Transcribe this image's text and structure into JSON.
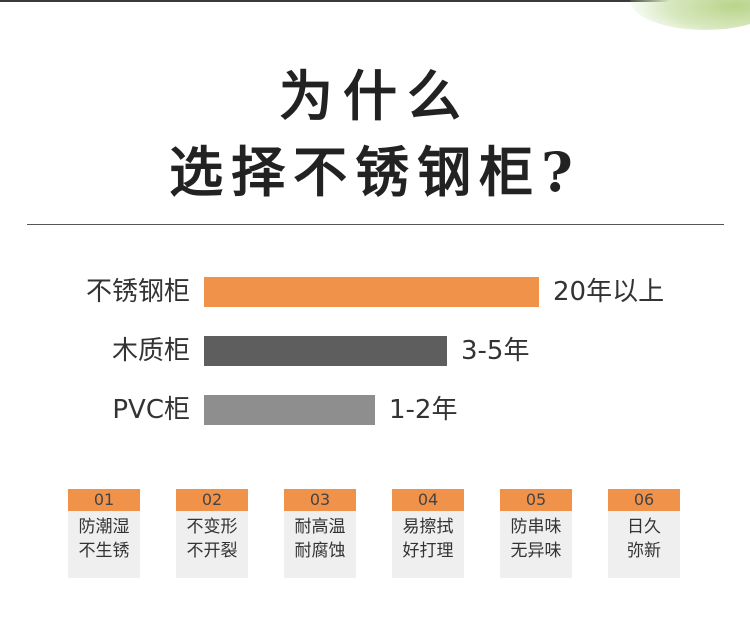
{
  "title": {
    "line1": "为什么",
    "line2": "选择不锈钢柜?"
  },
  "chart_data": {
    "type": "bar",
    "orientation": "horizontal",
    "categories": [
      "不锈钢柜",
      "木质柜",
      "PVC柜"
    ],
    "value_labels": [
      "20年以上",
      "3-5年",
      "1-2年"
    ],
    "relative_length": [
      1.0,
      0.725,
      0.51
    ],
    "colors": [
      "#f0924a",
      "#5e5e5e",
      "#8e8e8e"
    ],
    "grid": false,
    "legend": "none"
  },
  "features": [
    {
      "num": "01",
      "line1": "防潮湿",
      "line2": "不生锈"
    },
    {
      "num": "02",
      "line1": "不变形",
      "line2": "不开裂"
    },
    {
      "num": "03",
      "line1": "耐高温",
      "line2": "耐腐蚀"
    },
    {
      "num": "04",
      "line1": "易擦拭",
      "line2": "好打理"
    },
    {
      "num": "05",
      "line1": "防串味",
      "line2": "无异味"
    },
    {
      "num": "06",
      "line1": "日久",
      "line2": "弥新"
    }
  ],
  "colors": {
    "accent": "#f0924a",
    "card_bg": "#efefef"
  }
}
